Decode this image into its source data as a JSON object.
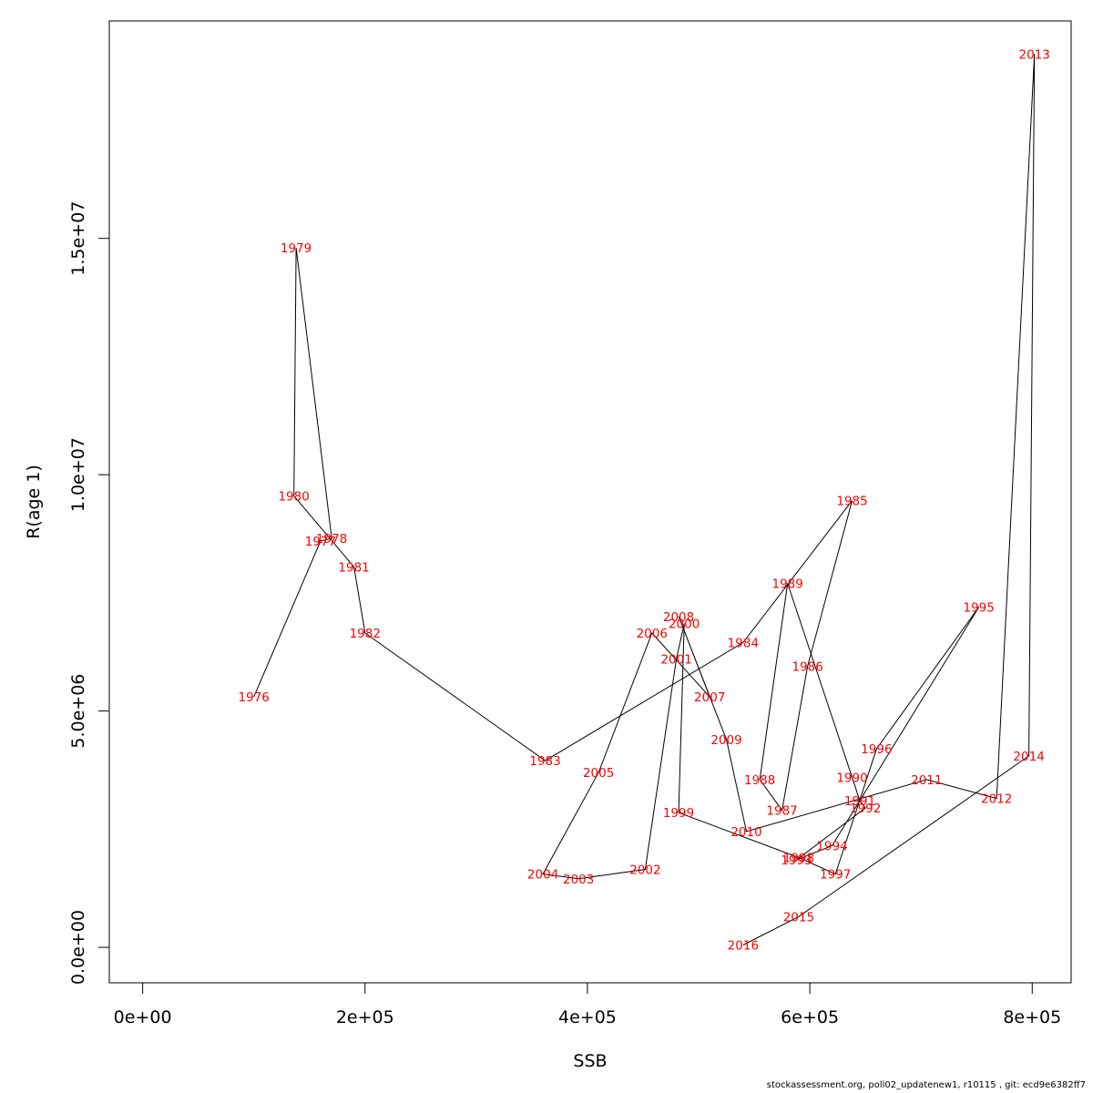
{
  "chart_data": {
    "type": "line",
    "title": "",
    "xlabel": "SSB",
    "ylabel": "R(age 1)",
    "xlim": [
      -30000,
      835000
    ],
    "ylim": [
      -750000,
      19600000
    ],
    "grid": false,
    "xticks": [
      {
        "value": 0,
        "label": "0e+00"
      },
      {
        "value": 200000,
        "label": "2e+05"
      },
      {
        "value": 400000,
        "label": "4e+05"
      },
      {
        "value": 600000,
        "label": "6e+05"
      },
      {
        "value": 800000,
        "label": "8e+05"
      }
    ],
    "yticks": [
      {
        "value": 0,
        "label": "0.0e+00"
      },
      {
        "value": 5000000,
        "label": "5.0e+06"
      },
      {
        "value": 10000000,
        "label": "1.0e+07"
      },
      {
        "value": 15000000,
        "label": "1.5e+07"
      }
    ],
    "line_color": "#000000",
    "label_color": "#ff0000",
    "points": [
      {
        "year": "1976",
        "x": 100000,
        "y": 5300000
      },
      {
        "year": "1977",
        "x": 160000,
        "y": 8600000
      },
      {
        "year": "1978",
        "x": 170000,
        "y": 8650000
      },
      {
        "year": "1979",
        "x": 138000,
        "y": 14800000
      },
      {
        "year": "1980",
        "x": 136000,
        "y": 9550000
      },
      {
        "year": "1981",
        "x": 190000,
        "y": 8050000
      },
      {
        "year": "1982",
        "x": 200000,
        "y": 6650000
      },
      {
        "year": "1983",
        "x": 362000,
        "y": 3950000
      },
      {
        "year": "1984",
        "x": 540000,
        "y": 6450000
      },
      {
        "year": "1985",
        "x": 638000,
        "y": 9450000
      },
      {
        "year": "1986",
        "x": 598000,
        "y": 5950000
      },
      {
        "year": "1987",
        "x": 575000,
        "y": 2900000
      },
      {
        "year": "1988",
        "x": 555000,
        "y": 3550000
      },
      {
        "year": "1989",
        "x": 580000,
        "y": 7700000
      },
      {
        "year": "1990",
        "x": 638000,
        "y": 3600000
      },
      {
        "year": "1991",
        "x": 645000,
        "y": 3100000
      },
      {
        "year": "1992",
        "x": 650000,
        "y": 2950000
      },
      {
        "year": "1993",
        "x": 588000,
        "y": 1850000
      },
      {
        "year": "1994",
        "x": 620000,
        "y": 2150000
      },
      {
        "year": "1995",
        "x": 752000,
        "y": 7200000
      },
      {
        "year": "1996",
        "x": 660000,
        "y": 4200000
      },
      {
        "year": "1997",
        "x": 623000,
        "y": 1550000
      },
      {
        "year": "1998",
        "x": 590000,
        "y": 1900000
      },
      {
        "year": "1999",
        "x": 482000,
        "y": 2850000
      },
      {
        "year": "2000",
        "x": 487000,
        "y": 6850000
      },
      {
        "year": "2001",
        "x": 480000,
        "y": 6100000
      },
      {
        "year": "2002",
        "x": 452000,
        "y": 1650000
      },
      {
        "year": "2003",
        "x": 392000,
        "y": 1450000
      },
      {
        "year": "2004",
        "x": 360000,
        "y": 1550000
      },
      {
        "year": "2005",
        "x": 410000,
        "y": 3700000
      },
      {
        "year": "2006",
        "x": 458000,
        "y": 6650000
      },
      {
        "year": "2007",
        "x": 510000,
        "y": 5300000
      },
      {
        "year": "2008",
        "x": 482000,
        "y": 7000000
      },
      {
        "year": "2009",
        "x": 525000,
        "y": 4400000
      },
      {
        "year": "2010",
        "x": 543000,
        "y": 2450000
      },
      {
        "year": "2011",
        "x": 705000,
        "y": 3550000
      },
      {
        "year": "2012",
        "x": 768000,
        "y": 3150000
      },
      {
        "year": "2013",
        "x": 802000,
        "y": 18900000
      },
      {
        "year": "2014",
        "x": 797000,
        "y": 4050000
      },
      {
        "year": "2015",
        "x": 590000,
        "y": 650000
      },
      {
        "year": "2016",
        "x": 540000,
        "y": 50000
      }
    ]
  },
  "footer": "stockassessment.org, poll02_updatenew1, r10115 , git: ecd9e6382ff7"
}
